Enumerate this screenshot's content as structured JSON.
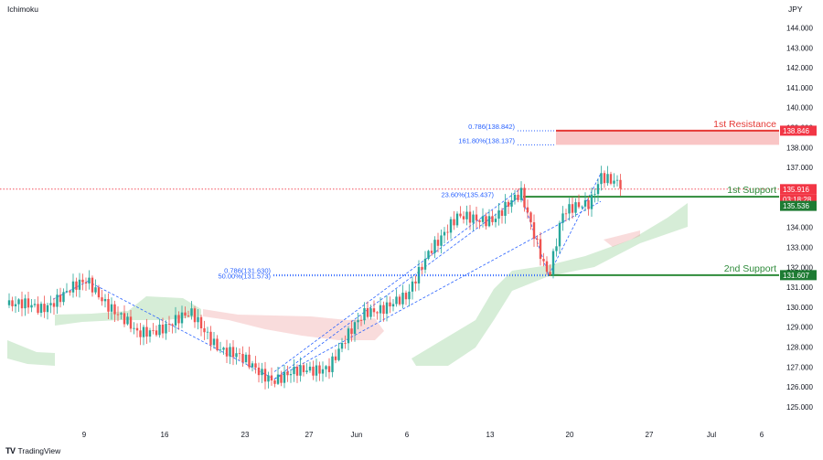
{
  "indicator_label": "Ichimoku",
  "currency_label": "JPY",
  "brand": "TradingView",
  "brand_logo_icon": "tradingview-logo-icon",
  "colors": {
    "up": "#26a69a",
    "down": "#ef5350",
    "fib": "#2962ff",
    "support": "#2e8b3a",
    "resistance": "#e53935",
    "price_tag": "#f23645",
    "support_tag": "#1e7b33"
  },
  "chart_data": {
    "type": "candlestick",
    "x_ticks": [
      "9",
      "16",
      "23",
      "27",
      "Jun",
      "6",
      "13",
      "20",
      "27",
      "Jul",
      "6"
    ],
    "y_ticks": [
      "144.000",
      "143.000",
      "142.000",
      "141.000",
      "140.000",
      "139.000",
      "138.000",
      "137.000",
      "135.000",
      "134.000",
      "133.000",
      "132.000",
      "131.000",
      "130.000",
      "129.000",
      "128.000",
      "127.000",
      "126.000",
      "125.000"
    ],
    "ylim": [
      124.5,
      144.6
    ],
    "current_price": "135.916",
    "countdown": "03:18:28",
    "levels": [
      {
        "name": "1st Resistance",
        "value": "138.846"
      },
      {
        "name": "1st Support",
        "value": "135.536"
      },
      {
        "name": "2nd Support",
        "value": "131.607"
      }
    ],
    "fib_labels": [
      {
        "text": "0.786(138.842)",
        "value": 138.842
      },
      {
        "text": "161.80%(138.137)",
        "value": 138.137
      },
      {
        "text": "23.60%(135.437)",
        "value": 135.437
      },
      {
        "text": "0.786(131.630)",
        "value": 131.63
      },
      {
        "text": "50.00%(131.573)",
        "value": 131.573
      }
    ],
    "pivots": [
      {
        "x": 96,
        "price": 131.3
      },
      {
        "x": 300,
        "price": 126.4
      },
      {
        "x": 570,
        "price": 135.6
      },
      {
        "x": 600,
        "price": 131.6
      },
      {
        "x": 657,
        "price": 136.7
      }
    ]
  }
}
